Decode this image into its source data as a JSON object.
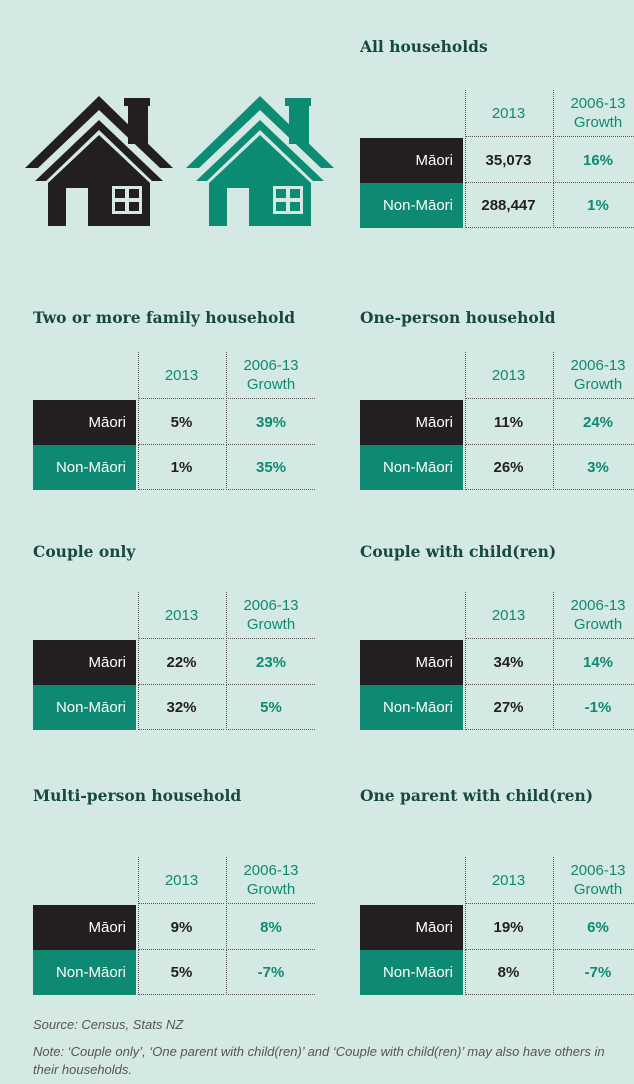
{
  "tables": [
    {
      "title": "All households",
      "headers": [
        "2013",
        "2006-13 Growth"
      ],
      "rows": [
        [
          "Māori",
          "35,073",
          "16%"
        ],
        [
          "Non-Māori",
          "288,447",
          "1%"
        ]
      ]
    },
    {
      "title": "Two or more family household",
      "headers": [
        "2013",
        "2006-13 Growth"
      ],
      "rows": [
        [
          "Māori",
          "5%",
          "39%"
        ],
        [
          "Non-Māori",
          "1%",
          "35%"
        ]
      ]
    },
    {
      "title": "One-person household",
      "headers": [
        "2013",
        "2006-13 Growth"
      ],
      "rows": [
        [
          "Māori",
          "11%",
          "24%"
        ],
        [
          "Non-Māori",
          "26%",
          "3%"
        ]
      ]
    },
    {
      "title": "Couple only",
      "headers": [
        "2013",
        "2006-13 Growth"
      ],
      "rows": [
        [
          "Māori",
          "22%",
          "23%"
        ],
        [
          "Non-Māori",
          "32%",
          "5%"
        ]
      ]
    },
    {
      "title": "Couple with child(ren)",
      "headers": [
        "2013",
        "2006-13 Growth"
      ],
      "rows": [
        [
          "Māori",
          "34%",
          "14%"
        ],
        [
          "Non-Māori",
          "27%",
          "-1%"
        ]
      ]
    },
    {
      "title": "Multi-person household",
      "headers": [
        "2013",
        "2006-13 Growth"
      ],
      "rows": [
        [
          "Māori",
          "9%",
          "8%"
        ],
        [
          "Non-Māori",
          "5%",
          "-7%"
        ]
      ]
    },
    {
      "title": "One parent with child(ren)",
      "headers": [
        "2013",
        "2006-13 Growth"
      ],
      "rows": [
        [
          "Māori",
          "19%",
          "6%"
        ],
        [
          "Non-Māori",
          "8%",
          "-7%"
        ]
      ]
    }
  ],
  "source": "Source: Census, Stats NZ",
  "note": "Note: ‘Couple only’, ‘One parent with child(ren)’ and ‘Couple with child(ren)’ may also have others in their households."
}
